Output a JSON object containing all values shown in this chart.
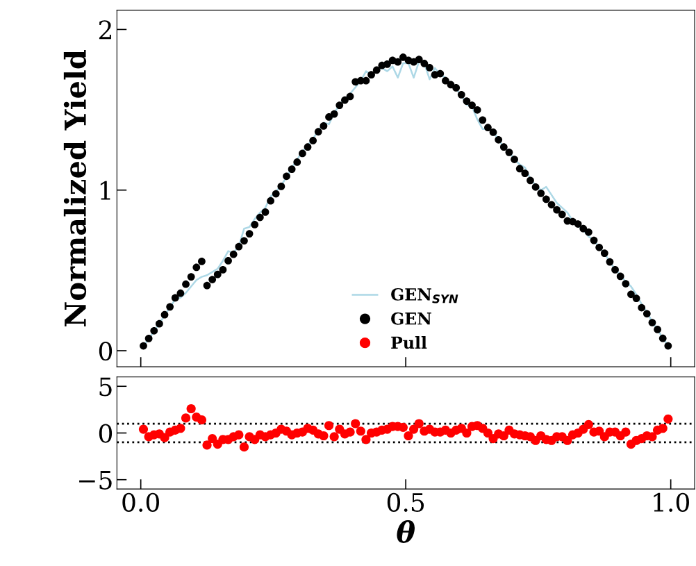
{
  "chart_data": [
    {
      "type": "scatter",
      "ylabel": "Normalized Yield",
      "xlim": [
        -0.045,
        1.045
      ],
      "ylim": [
        -0.1,
        2.12
      ],
      "xticks": [
        {
          "value": 0,
          "label": null
        },
        {
          "value": 0.5,
          "label": null
        },
        {
          "value": 1,
          "label": null
        }
      ],
      "yticks": [
        0,
        1,
        2
      ],
      "tick_labels": "y",
      "legend": "bottom",
      "grid": false,
      "series": [
        {
          "name": "GEN$_{SYN}$",
          "type": "line",
          "marker": "none",
          "color": "#add8e6",
          "line_style": "solid",
          "x": [
            0.005,
            0.015,
            0.025,
            0.035,
            0.045,
            0.055,
            0.065,
            0.075,
            0.085,
            0.095,
            0.105,
            0.115,
            0.125,
            0.135,
            0.145,
            0.155,
            0.165,
            0.175,
            0.185,
            0.195,
            0.205,
            0.215,
            0.225,
            0.235,
            0.245,
            0.255,
            0.265,
            0.275,
            0.285,
            0.295,
            0.305,
            0.315,
            0.325,
            0.335,
            0.345,
            0.355,
            0.365,
            0.375,
            0.385,
            0.395,
            0.405,
            0.415,
            0.425,
            0.435,
            0.445,
            0.455,
            0.465,
            0.475,
            0.485,
            0.495,
            0.505,
            0.515,
            0.525,
            0.535,
            0.545,
            0.555,
            0.565,
            0.575,
            0.585,
            0.595,
            0.605,
            0.615,
            0.625,
            0.635,
            0.645,
            0.655,
            0.665,
            0.675,
            0.685,
            0.695,
            0.705,
            0.715,
            0.725,
            0.735,
            0.745,
            0.755,
            0.765,
            0.775,
            0.785,
            0.795,
            0.805,
            0.815,
            0.825,
            0.835,
            0.845,
            0.855,
            0.865,
            0.875,
            0.885,
            0.895,
            0.905,
            0.915,
            0.925,
            0.935,
            0.945,
            0.955,
            0.965,
            0.975,
            0.985,
            0.995
          ],
          "values": [
            0.03,
            0.075,
            0.12,
            0.17,
            0.22,
            0.27,
            0.32,
            0.33,
            0.36,
            0.4,
            0.44,
            0.46,
            0.47,
            0.49,
            0.51,
            0.56,
            0.62,
            0.61,
            0.65,
            0.76,
            0.77,
            0.82,
            0.86,
            0.89,
            0.96,
            0.99,
            1.03,
            1.08,
            1.14,
            1.19,
            1.24,
            1.28,
            1.32,
            1.37,
            1.42,
            1.41,
            1.48,
            1.53,
            1.57,
            1.6,
            1.64,
            1.68,
            1.74,
            1.72,
            1.75,
            1.76,
            1.74,
            1.77,
            1.7,
            1.79,
            1.79,
            1.7,
            1.8,
            1.79,
            1.69,
            1.76,
            1.72,
            1.7,
            1.65,
            1.63,
            1.59,
            1.53,
            1.52,
            1.44,
            1.38,
            1.38,
            1.37,
            1.31,
            1.27,
            1.24,
            1.19,
            1.16,
            1.14,
            1.07,
            1.03,
            1.0,
            1.02,
            0.97,
            0.92,
            0.89,
            0.86,
            0.81,
            0.78,
            0.75,
            0.71,
            0.69,
            0.64,
            0.61,
            0.55,
            0.51,
            0.47,
            0.43,
            0.4,
            0.35,
            0.29,
            0.24,
            0.18,
            0.13,
            0.08,
            0.03
          ]
        },
        {
          "name": "GEN",
          "marker": "circle",
          "color": "#000000",
          "x": [
            0.005,
            0.015,
            0.025,
            0.035,
            0.045,
            0.055,
            0.065,
            0.075,
            0.085,
            0.095,
            0.105,
            0.115,
            0.125,
            0.135,
            0.145,
            0.155,
            0.165,
            0.175,
            0.185,
            0.195,
            0.205,
            0.215,
            0.225,
            0.235,
            0.245,
            0.255,
            0.265,
            0.275,
            0.285,
            0.295,
            0.305,
            0.315,
            0.325,
            0.335,
            0.345,
            0.355,
            0.365,
            0.375,
            0.385,
            0.395,
            0.405,
            0.415,
            0.425,
            0.435,
            0.445,
            0.455,
            0.465,
            0.475,
            0.485,
            0.495,
            0.505,
            0.515,
            0.525,
            0.535,
            0.545,
            0.555,
            0.565,
            0.575,
            0.585,
            0.595,
            0.605,
            0.615,
            0.625,
            0.635,
            0.645,
            0.655,
            0.665,
            0.675,
            0.685,
            0.695,
            0.705,
            0.715,
            0.725,
            0.735,
            0.745,
            0.755,
            0.765,
            0.775,
            0.785,
            0.795,
            0.805,
            0.815,
            0.825,
            0.835,
            0.845,
            0.855,
            0.865,
            0.875,
            0.885,
            0.895,
            0.905,
            0.915,
            0.925,
            0.935,
            0.945,
            0.955,
            0.965,
            0.975,
            0.985,
            0.995
          ],
          "values": [
            0.03,
            0.076,
            0.124,
            0.168,
            0.224,
            0.273,
            0.329,
            0.358,
            0.414,
            0.46,
            0.519,
            0.556,
            0.406,
            0.443,
            0.475,
            0.504,
            0.56,
            0.6,
            0.648,
            0.684,
            0.728,
            0.785,
            0.83,
            0.863,
            0.933,
            0.977,
            1.023,
            1.086,
            1.13,
            1.174,
            1.228,
            1.268,
            1.308,
            1.363,
            1.399,
            1.455,
            1.474,
            1.528,
            1.56,
            1.583,
            1.674,
            1.681,
            1.681,
            1.718,
            1.747,
            1.776,
            1.784,
            1.808,
            1.798,
            1.827,
            1.808,
            1.798,
            1.813,
            1.788,
            1.762,
            1.718,
            1.725,
            1.681,
            1.656,
            1.637,
            1.594,
            1.554,
            1.528,
            1.499,
            1.436,
            1.389,
            1.36,
            1.313,
            1.268,
            1.235,
            1.191,
            1.133,
            1.104,
            1.06,
            1.019,
            0.98,
            0.943,
            0.909,
            0.877,
            0.848,
            0.808,
            0.804,
            0.789,
            0.76,
            0.738,
            0.687,
            0.643,
            0.607,
            0.553,
            0.504,
            0.463,
            0.417,
            0.351,
            0.326,
            0.268,
            0.23,
            0.175,
            0.132,
            0.077,
            0.03
          ]
        }
      ]
    },
    {
      "type": "scatter",
      "xlabel": "θ",
      "xlim": [
        -0.045,
        1.045
      ],
      "ylim": [
        -6,
        6
      ],
      "xticks": [
        {
          "value": 0,
          "label": "0.0"
        },
        {
          "value": 0.5,
          "label": "0.5"
        },
        {
          "value": 1,
          "label": "1.0"
        }
      ],
      "yticks": [
        {
          "value": 5,
          "label": "5"
        },
        {
          "value": 0,
          "label": "0"
        },
        {
          "value": -5,
          "label": "−5"
        }
      ],
      "marker": "circle",
      "grid": false,
      "ref_lines": [
        {
          "axis": "y",
          "value": 1,
          "color": "#000000",
          "line_style": "dotted"
        },
        {
          "axis": "y",
          "value": -1,
          "color": "#000000",
          "line_style": "dotted"
        }
      ],
      "series": [
        {
          "name": "Pull",
          "color": "#ff0000",
          "x": [
            0.005,
            0.015,
            0.025,
            0.035,
            0.045,
            0.055,
            0.065,
            0.075,
            0.085,
            0.095,
            0.105,
            0.115,
            0.125,
            0.135,
            0.145,
            0.155,
            0.165,
            0.175,
            0.185,
            0.195,
            0.205,
            0.215,
            0.225,
            0.235,
            0.245,
            0.255,
            0.265,
            0.275,
            0.285,
            0.295,
            0.305,
            0.315,
            0.325,
            0.335,
            0.345,
            0.355,
            0.365,
            0.375,
            0.385,
            0.395,
            0.405,
            0.415,
            0.425,
            0.435,
            0.445,
            0.455,
            0.465,
            0.475,
            0.485,
            0.495,
            0.505,
            0.515,
            0.525,
            0.535,
            0.545,
            0.555,
            0.565,
            0.575,
            0.585,
            0.595,
            0.605,
            0.615,
            0.625,
            0.635,
            0.645,
            0.655,
            0.665,
            0.675,
            0.685,
            0.695,
            0.705,
            0.715,
            0.725,
            0.735,
            0.745,
            0.755,
            0.765,
            0.775,
            0.785,
            0.795,
            0.805,
            0.815,
            0.825,
            0.835,
            0.845,
            0.855,
            0.865,
            0.875,
            0.885,
            0.895,
            0.905,
            0.915,
            0.925,
            0.935,
            0.945,
            0.955,
            0.965,
            0.975,
            0.985,
            0.995
          ],
          "values": [
            0.4,
            -0.4,
            -0.2,
            -0.1,
            -0.5,
            0.1,
            0.3,
            0.5,
            1.6,
            2.6,
            1.7,
            1.4,
            -1.3,
            -0.6,
            -1.2,
            -0.7,
            -0.7,
            -0.4,
            -0.2,
            -1.5,
            -0.4,
            -0.7,
            -0.2,
            -0.4,
            -0.2,
            0,
            0.4,
            0.2,
            -0.2,
            0,
            0.1,
            0.5,
            0.3,
            -0.1,
            -0.3,
            0.8,
            -0.4,
            0.4,
            -0.1,
            0.1,
            1.0,
            0.2,
            -0.7,
            0,
            0.1,
            0.3,
            0.4,
            0.7,
            0.7,
            0.6,
            -0.3,
            0.4,
            1.0,
            0.2,
            0.4,
            0.1,
            0.1,
            0.3,
            0,
            0.3,
            0.5,
            0,
            0.7,
            0.8,
            0.5,
            0,
            -0.6,
            -0.1,
            -0.3,
            0.3,
            -0.1,
            -0.2,
            -0.3,
            -0.4,
            -0.8,
            -0.3,
            -0.7,
            -0.8,
            -0.4,
            -0.4,
            -0.8,
            -0.2,
            0,
            0.4,
            0.9,
            0.1,
            0.2,
            -0.4,
            0.1,
            0.1,
            -0.3,
            0.1,
            -1.2,
            -0.8,
            -0.6,
            -0.3,
            -0.4,
            0.3,
            0.5,
            1.5
          ]
        }
      ]
    }
  ]
}
